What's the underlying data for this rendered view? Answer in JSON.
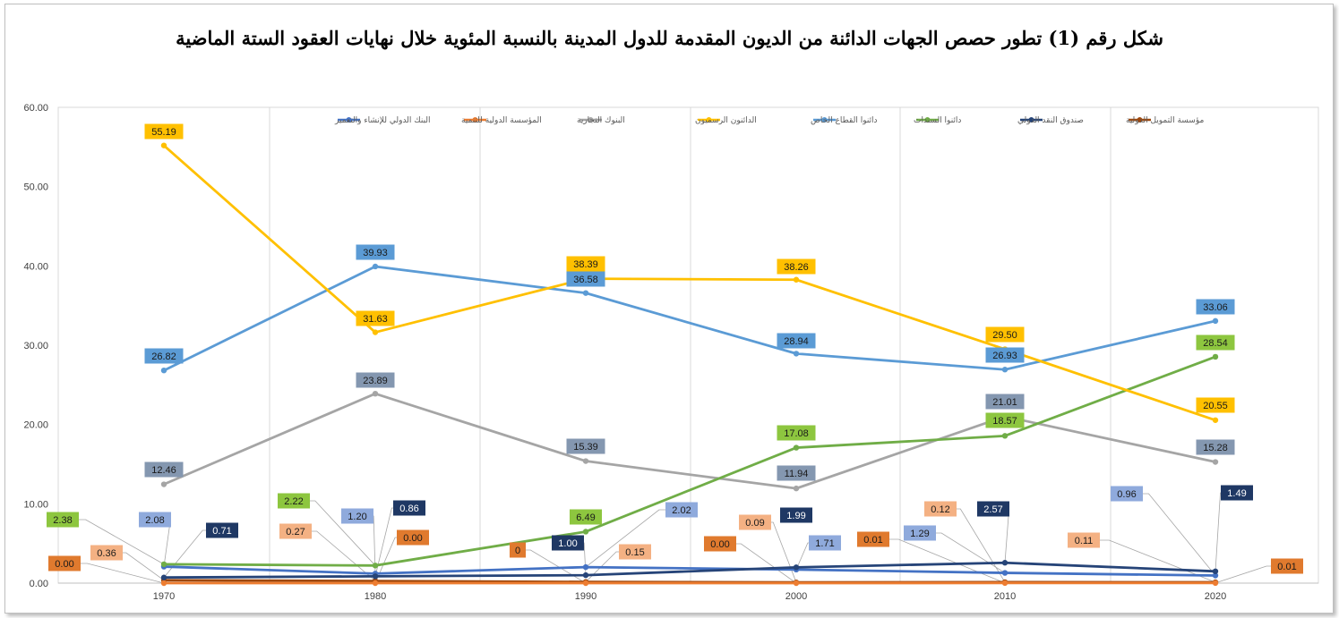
{
  "chart_data": {
    "type": "line",
    "title": "شكل رقم (1) تطور حصص الجهات الدائنة من الديون المقدمة للدول المدينة بالنسبة المئوية خلال نهايات العقود الستة الماضية",
    "x": [
      "1970",
      "1980",
      "1990",
      "2000",
      "2010",
      "2020"
    ],
    "ylim": [
      0,
      60
    ],
    "yticks": [
      "0.00",
      "10.00",
      "20.00",
      "30.00",
      "40.00",
      "50.00",
      "60.00"
    ],
    "grid": "vertical",
    "legend_position": "top",
    "series": [
      {
        "name": "البنك الدولي للإنشاء والتعمير",
        "color": "#4472C4",
        "values": [
          2.08,
          1.2,
          2.02,
          1.71,
          1.29,
          0.96
        ],
        "labels": [
          "2.08",
          "1.20",
          "2.02",
          "1.71",
          "1.29",
          "0.96"
        ],
        "label_color": "#8FAADC"
      },
      {
        "name": "المؤسسة الدولية للتنمية",
        "color": "#ED7D31",
        "values": [
          0.0,
          0.0,
          0,
          0.0,
          0.01,
          0.01
        ],
        "labels": [
          "0.00",
          "0.00",
          "0",
          "0.00",
          "0.01",
          "0.01"
        ],
        "label_color": "#E07A2E"
      },
      {
        "name": "البنوك التجارية",
        "color": "#A5A5A5",
        "values": [
          12.46,
          23.89,
          15.39,
          11.94,
          21.01,
          15.28
        ],
        "labels": [
          "12.46",
          "23.89",
          "15.39",
          "11.94",
          "21.01",
          "15.28"
        ],
        "label_color": "#8497B0"
      },
      {
        "name": "الدائنون الرسميون",
        "color": "#FFC000",
        "values": [
          55.19,
          31.63,
          38.39,
          38.26,
          29.5,
          20.55
        ],
        "labels": [
          "55.19",
          "31.63",
          "38.39",
          "38.26",
          "29.50",
          "20.55"
        ],
        "label_color": "#FFC000"
      },
      {
        "name": "دائنوا القطاع الخاص",
        "color": "#5B9BD5",
        "values": [
          26.82,
          39.93,
          36.58,
          28.94,
          26.93,
          33.06
        ],
        "labels": [
          "26.82",
          "39.93",
          "36.58",
          "28.94",
          "26.93",
          "33.06"
        ],
        "label_color": "#5B9BD5"
      },
      {
        "name": "دائنوا السندات",
        "color": "#70AD47",
        "values": [
          2.38,
          2.22,
          6.49,
          17.08,
          18.57,
          28.54
        ],
        "labels": [
          "2.38",
          "2.22",
          "6.49",
          "17.08",
          "18.57",
          "28.54"
        ],
        "label_color": "#8DC63F"
      },
      {
        "name": "صندوق النقد الدولي",
        "color": "#264478",
        "values": [
          0.71,
          0.86,
          1.0,
          1.99,
          2.57,
          1.49
        ],
        "labels": [
          "0.71",
          "0.86",
          "1.00",
          "1.99",
          "2.57",
          "1.49"
        ],
        "label_color": "#1F3864"
      },
      {
        "name": "مؤسسة التمويل الدولية",
        "color": "#9E480E",
        "values": [
          0.36,
          0.27,
          0.15,
          0.09,
          0.12,
          0.11
        ],
        "labels": [
          "0.36",
          "0.27",
          "0.15",
          "0.09",
          "0.12",
          "0.11"
        ],
        "label_color": "#F4B183"
      }
    ]
  }
}
